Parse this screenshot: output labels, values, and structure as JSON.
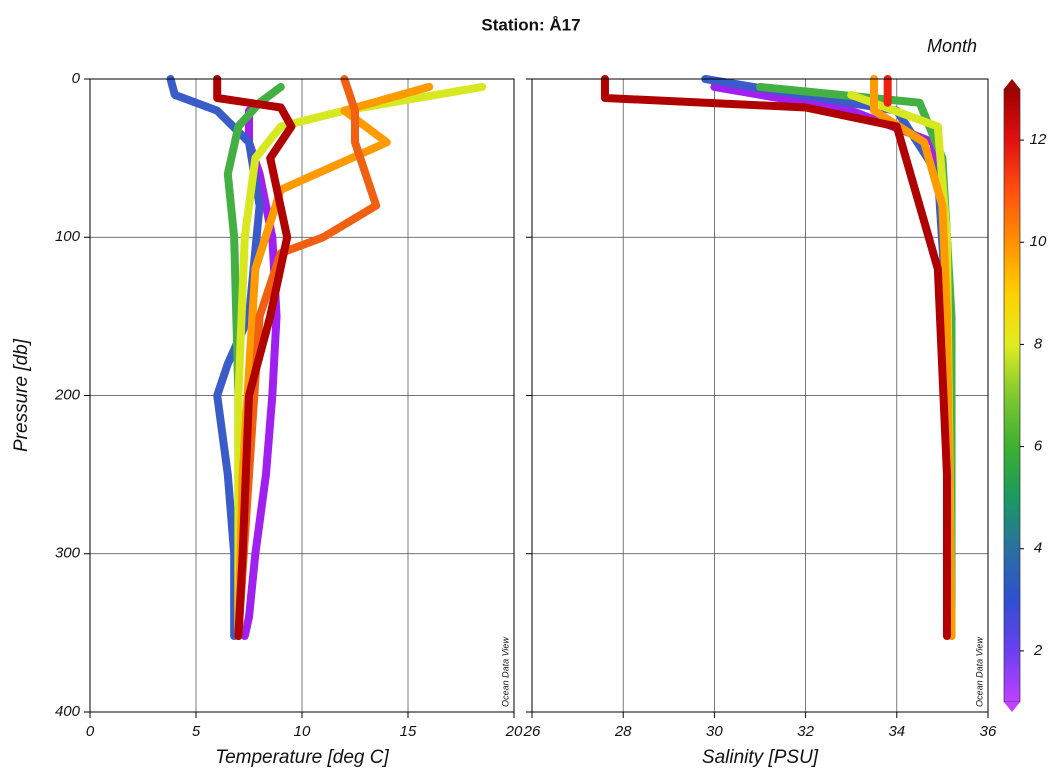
{
  "chart_data": [
    {
      "type": "line",
      "title": "Station: Å17",
      "xlabel": "Temperature [deg C]",
      "ylabel": "Pressure [db]",
      "annotation": "Ocean Data View",
      "xlim": [
        0,
        20
      ],
      "xticks": [
        0,
        5,
        10,
        15,
        20
      ],
      "ylim": [
        0,
        400
      ],
      "yticks": [
        0,
        100,
        200,
        300,
        400
      ],
      "y_inverted": true,
      "grid": true,
      "series": [
        {
          "color": "#a020f0",
          "x": [
            7.5,
            7.5,
            8.0,
            8.6,
            8.8,
            8.6,
            8.3,
            7.8,
            7.5,
            7.3
          ],
          "values": [
            20,
            40,
            60,
            100,
            150,
            200,
            250,
            300,
            340,
            352
          ]
        },
        {
          "color": "#3a5cc8",
          "x": [
            3.8,
            4,
            6,
            7.5,
            8,
            7.5,
            6.5,
            6,
            6.5,
            6.8,
            6.8
          ],
          "values": [
            0,
            10,
            20,
            40,
            80,
            150,
            180,
            200,
            250,
            300,
            352
          ]
        },
        {
          "color": "#44b044",
          "x": [
            9,
            8,
            7,
            6.5,
            6.8,
            7,
            7
          ],
          "values": [
            5,
            15,
            30,
            60,
            100,
            200,
            350
          ]
        },
        {
          "color": "#d8e820",
          "x": [
            18.5,
            12,
            9,
            7.8,
            7.3,
            7,
            7
          ],
          "values": [
            5,
            20,
            30,
            50,
            100,
            200,
            350
          ]
        },
        {
          "color": "#ff9a00",
          "x": [
            16,
            12,
            13,
            14,
            9,
            7.8,
            7.2,
            7
          ],
          "values": [
            5,
            20,
            30,
            40,
            70,
            120,
            250,
            352
          ]
        },
        {
          "color": "#f06010",
          "x": [
            12,
            12.5,
            12.5,
            13.5,
            11,
            9,
            8,
            7.5,
            7
          ],
          "values": [
            0,
            20,
            40,
            80,
            100,
            110,
            150,
            250,
            352
          ]
        },
        {
          "color": "#b00000",
          "x": [
            6,
            6,
            9,
            9.5,
            8.5,
            9.3,
            8.5,
            7.5,
            7.2,
            7
          ],
          "values": [
            0,
            12,
            18,
            30,
            50,
            100,
            150,
            200,
            300,
            352
          ]
        }
      ]
    },
    {
      "type": "line",
      "xlabel": "Salinity [PSU]",
      "annotation": "Ocean Data View",
      "xlim": [
        26,
        36
      ],
      "xticks": [
        26,
        28,
        30,
        32,
        34,
        36
      ],
      "ylim": [
        0,
        400
      ],
      "yticks": [
        0,
        100,
        200,
        300,
        400
      ],
      "y_inverted": true,
      "grid": true,
      "series": [
        {
          "color": "#a020f0",
          "x": [
            30,
            33,
            34.8,
            35.1,
            35.2,
            35.2
          ],
          "values": [
            5,
            20,
            40,
            100,
            200,
            352
          ]
        },
        {
          "color": "#3a5cc8",
          "x": [
            29.8,
            34,
            34.9,
            35.1,
            35.2
          ],
          "values": [
            0,
            20,
            60,
            150,
            352
          ]
        },
        {
          "color": "#44b044",
          "x": [
            31,
            34.5,
            35.0,
            35.2,
            35.2
          ],
          "values": [
            5,
            15,
            50,
            150,
            352
          ]
        },
        {
          "color": "#d8e820",
          "x": [
            33,
            34.9,
            35.1,
            35.2
          ],
          "values": [
            10,
            30,
            100,
            352
          ]
        },
        {
          "color": "#ff9a00",
          "x": [
            33.5,
            33.5,
            34.6,
            35.0,
            35.1,
            35.2
          ],
          "values": [
            0,
            20,
            40,
            80,
            150,
            352
          ]
        },
        {
          "color": "#f02010",
          "x": [
            33.8,
            33.8
          ],
          "values": [
            0,
            15
          ]
        },
        {
          "color": "#b00000",
          "x": [
            27.6,
            27.6,
            32,
            34,
            34.5,
            34.9,
            35.1,
            35.1
          ],
          "values": [
            0,
            12,
            18,
            30,
            80,
            120,
            250,
            352
          ]
        }
      ]
    },
    {
      "type": "colorbar",
      "title": "Month",
      "lim": [
        1,
        13
      ],
      "ticks": [
        2,
        4,
        6,
        8,
        10,
        12
      ],
      "colors": [
        "#c040ff",
        "#6a40f0",
        "#3050d0",
        "#2a70a0",
        "#1a9a60",
        "#3cb030",
        "#80c830",
        "#e0ec20",
        "#ffd000",
        "#ff9000",
        "#ff5010",
        "#e01010",
        "#a00000"
      ]
    }
  ]
}
